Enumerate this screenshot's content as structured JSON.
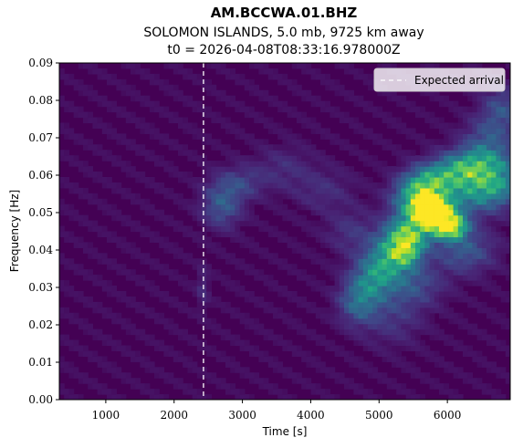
{
  "chart_data": {
    "type": "heatmap",
    "title": "AM.BCCWA.01.BHZ",
    "subtitle_line1": "SOLOMON ISLANDS, 5.0 mb, 9725 km away",
    "subtitle_line2": "t0 = 2026-04-08T08:33:16.978000Z",
    "xlabel": "Time [s]",
    "ylabel": "Frequency [Hz]",
    "xlim": [
      320,
      6920
    ],
    "ylim": [
      0.0,
      0.09
    ],
    "xticks": [
      1000,
      2000,
      3000,
      4000,
      5000,
      6000
    ],
    "xtick_labels": [
      "1000",
      "2000",
      "3000",
      "4000",
      "5000",
      "6000"
    ],
    "yticks": [
      0.0,
      0.01,
      0.02,
      0.03,
      0.04,
      0.05,
      0.06,
      0.07,
      0.08,
      0.09
    ],
    "ytick_labels": [
      "0.00",
      "0.01",
      "0.02",
      "0.03",
      "0.04",
      "0.05",
      "0.06",
      "0.07",
      "0.08",
      "0.09"
    ],
    "expected_arrival_s": 2430,
    "legend": {
      "entries": [
        "Expected arrival"
      ],
      "placement": "top-right"
    },
    "colormap": "viridis",
    "colormap_stops": [
      "#440154",
      "#482475",
      "#414487",
      "#355f8d",
      "#2a788e",
      "#21918c",
      "#22a884",
      "#44bf70",
      "#7ad151",
      "#bddf26",
      "#fde725"
    ],
    "background_color": "#440154",
    "arrival_line_color": "#ffffff",
    "energy_blobs": [
      {
        "t": 2700,
        "f": 0.052,
        "st": 200,
        "sf": 0.004,
        "a": 0.3
      },
      {
        "t": 2950,
        "f": 0.058,
        "st": 250,
        "sf": 0.003,
        "a": 0.2
      },
      {
        "t": 3600,
        "f": 0.062,
        "st": 300,
        "sf": 0.004,
        "a": 0.12
      },
      {
        "t": 4200,
        "f": 0.056,
        "st": 300,
        "sf": 0.004,
        "a": 0.12
      },
      {
        "t": 4700,
        "f": 0.026,
        "st": 200,
        "sf": 0.004,
        "a": 0.35
      },
      {
        "t": 4900,
        "f": 0.032,
        "st": 220,
        "sf": 0.004,
        "a": 0.38
      },
      {
        "t": 5100,
        "f": 0.037,
        "st": 230,
        "sf": 0.004,
        "a": 0.4
      },
      {
        "t": 5300,
        "f": 0.042,
        "st": 220,
        "sf": 0.004,
        "a": 0.48
      },
      {
        "t": 5400,
        "f": 0.04,
        "st": 150,
        "sf": 0.003,
        "a": 0.45
      },
      {
        "t": 5500,
        "f": 0.046,
        "st": 220,
        "sf": 0.004,
        "a": 0.52
      },
      {
        "t": 5600,
        "f": 0.054,
        "st": 250,
        "sf": 0.003,
        "a": 0.6
      },
      {
        "t": 5700,
        "f": 0.058,
        "st": 250,
        "sf": 0.003,
        "a": 0.55
      },
      {
        "t": 5750,
        "f": 0.051,
        "st": 180,
        "sf": 0.0025,
        "a": 0.9
      },
      {
        "t": 5900,
        "f": 0.049,
        "st": 220,
        "sf": 0.003,
        "a": 0.8
      },
      {
        "t": 6050,
        "f": 0.046,
        "st": 160,
        "sf": 0.002,
        "a": 0.88
      },
      {
        "t": 6150,
        "f": 0.061,
        "st": 300,
        "sf": 0.003,
        "a": 0.5
      },
      {
        "t": 6400,
        "f": 0.056,
        "st": 300,
        "sf": 0.004,
        "a": 0.45
      },
      {
        "t": 6500,
        "f": 0.064,
        "st": 300,
        "sf": 0.003,
        "a": 0.4
      },
      {
        "t": 6750,
        "f": 0.058,
        "st": 250,
        "sf": 0.004,
        "a": 0.4
      },
      {
        "t": 6250,
        "f": 0.04,
        "st": 300,
        "sf": 0.004,
        "a": 0.3
      },
      {
        "t": 6600,
        "f": 0.07,
        "st": 250,
        "sf": 0.004,
        "a": 0.25
      },
      {
        "t": 6800,
        "f": 0.078,
        "st": 200,
        "sf": 0.004,
        "a": 0.25
      },
      {
        "t": 5500,
        "f": 0.031,
        "st": 300,
        "sf": 0.004,
        "a": 0.25
      },
      {
        "t": 5200,
        "f": 0.022,
        "st": 300,
        "sf": 0.005,
        "a": 0.15
      },
      {
        "t": 4600,
        "f": 0.045,
        "st": 250,
        "sf": 0.004,
        "a": 0.15
      },
      {
        "t": 2420,
        "f": 0.03,
        "st": 60,
        "sf": 0.004,
        "a": 0.12
      }
    ]
  }
}
